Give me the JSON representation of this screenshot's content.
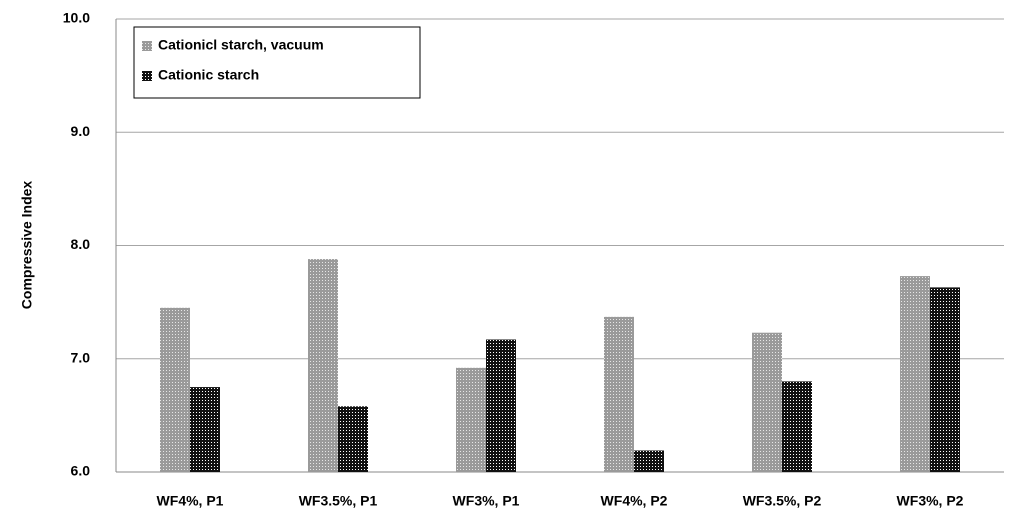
{
  "chart_data": {
    "type": "bar",
    "y_label": "Compressive Index",
    "categories": [
      "WF4%, P1",
      "WF3.5%, P1",
      "WF3%, P1",
      "WF4%, P2",
      "WF3.5%, P2",
      "WF3%, P2"
    ],
    "series": [
      {
        "name": "Cationicl starch, vacuum",
        "color": "#9a9a9a",
        "values": [
          7.45,
          7.88,
          6.92,
          7.37,
          7.23,
          7.73
        ]
      },
      {
        "name": "Cationic starch",
        "color": "#111111",
        "values": [
          6.75,
          6.58,
          7.17,
          6.19,
          6.8,
          7.63
        ]
      }
    ],
    "ylim": [
      6,
      10
    ],
    "yticks": [
      {
        "value": 6,
        "label": "6.0"
      },
      {
        "value": 7,
        "label": "7.0"
      },
      {
        "value": 8,
        "label": "8.0"
      },
      {
        "value": 9,
        "label": "9.0"
      },
      {
        "value": 10,
        "label": "10.0"
      }
    ],
    "grid": true,
    "legend": "top-left"
  }
}
